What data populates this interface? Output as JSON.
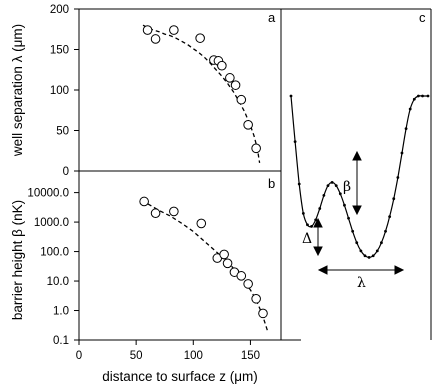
{
  "figure": {
    "colors": {
      "ink": "#000000",
      "background": "#ffffff"
    }
  },
  "chart_data": [
    {
      "panel": "a",
      "type": "scatter",
      "panel_label": "a",
      "ylabel": "well separation λ (μm)",
      "xlim": [
        0,
        175
      ],
      "ylim": [
        0,
        200
      ],
      "yticks": [
        "0",
        "50",
        "100",
        "150",
        "200"
      ],
      "grid": false,
      "series": [
        {
          "marker": "open-circle",
          "x": [
            60,
            67,
            83,
            106,
            118,
            122,
            125,
            132,
            137,
            142,
            148,
            155
          ],
          "y": [
            174,
            163,
            174,
            164,
            137,
            136,
            130,
            115,
            106,
            88,
            57,
            28
          ]
        },
        {
          "marker": "dashed-line",
          "x": [
            56,
            60,
            65,
            70,
            75,
            80,
            85,
            90,
            95,
            100,
            105,
            110,
            115,
            120,
            125,
            130,
            135,
            140,
            145,
            150,
            153,
            156,
            158
          ],
          "y": [
            180,
            177,
            174,
            172,
            169,
            167,
            164,
            160,
            156,
            151,
            146,
            140,
            133,
            125,
            117,
            108,
            98,
            86,
            73,
            56,
            44,
            28,
            10
          ]
        }
      ]
    },
    {
      "panel": "b",
      "type": "scatter",
      "panel_label": "b",
      "ylabel": "barrier height β (nK)",
      "xlabel": "distance to surface z (μm)",
      "xlim": [
        0,
        175
      ],
      "ylim": [
        0.1,
        50000
      ],
      "yscale": "log",
      "xticks": [
        "0",
        "50",
        "100",
        "150"
      ],
      "yticks": [
        "0.1",
        "1.0",
        "10.0",
        "100.0",
        "1000.0",
        "10000.0"
      ],
      "grid": false,
      "series": [
        {
          "marker": "open-circle",
          "x": [
            57,
            67,
            83,
            107,
            121,
            127,
            130,
            136,
            142,
            148,
            155,
            161
          ],
          "y": [
            5000,
            2000,
            2300,
            900,
            60,
            80,
            40,
            20,
            15,
            8,
            2.5,
            0.8
          ]
        },
        {
          "marker": "dashed-line",
          "x": [
            55,
            60,
            70,
            80,
            90,
            100,
            110,
            120,
            130,
            140,
            150,
            155,
            160,
            165
          ],
          "y": [
            5500,
            4200,
            2500,
            1600,
            900,
            480,
            220,
            100,
            44,
            17,
            5,
            2.3,
            0.8,
            0.2
          ]
        }
      ]
    },
    {
      "panel": "c",
      "type": "line",
      "panel_label": "c",
      "description_marks": {
        "barrier_symbol": "β",
        "asymmetry_symbol": "Δ",
        "separation_symbol": "λ"
      },
      "series": [
        {
          "marker": "line-with-dots",
          "x": [
            0.0,
            0.03,
            0.06,
            0.09,
            0.12,
            0.15,
            0.18,
            0.21,
            0.24,
            0.27,
            0.3,
            0.33,
            0.36,
            0.39,
            0.42,
            0.45,
            0.48,
            0.51,
            0.54,
            0.57,
            0.6,
            0.63,
            0.66,
            0.69,
            0.72,
            0.75,
            0.78,
            0.81,
            0.84,
            0.87,
            0.9,
            0.93,
            0.96,
            1.0
          ],
          "y": [
            1.0,
            0.72,
            0.46,
            0.28,
            0.21,
            0.2,
            0.24,
            0.31,
            0.39,
            0.45,
            0.47,
            0.45,
            0.4,
            0.33,
            0.25,
            0.17,
            0.1,
            0.05,
            0.02,
            0.01,
            0.02,
            0.05,
            0.1,
            0.17,
            0.26,
            0.37,
            0.5,
            0.65,
            0.8,
            0.92,
            0.98,
            1.0,
            1.0,
            1.0
          ]
        }
      ]
    }
  ]
}
